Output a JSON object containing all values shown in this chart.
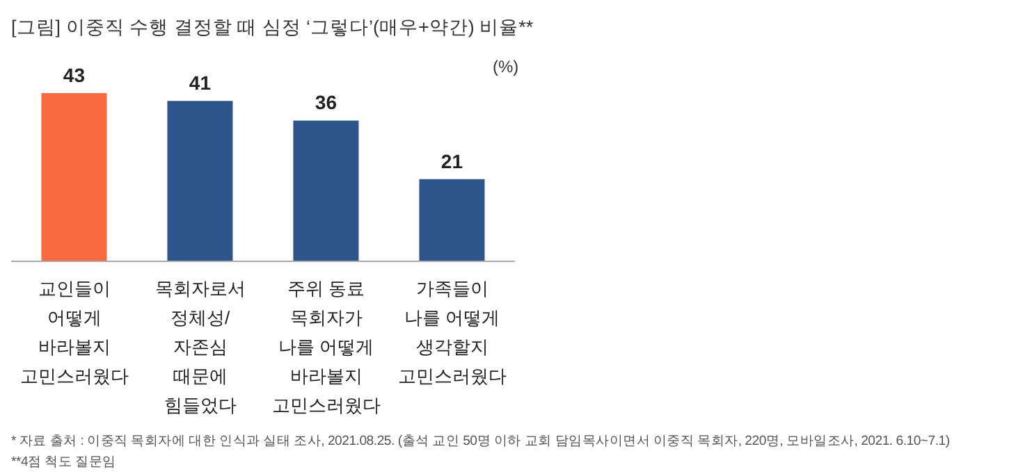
{
  "chart_data": {
    "type": "bar",
    "title": "[그림] 이중직 수행 결정할 때 심정 ‘그렇다’(매우+약간) 비율**",
    "ylabel": "(%)",
    "categories": [
      "교인들이\n어떻게\n바라볼지\n고민스러웠다",
      "목회자로서\n정체성/\n자존심\n때문에\n힘들었다",
      "주위 동료\n목회자가\n나를 어떻게\n바라볼지\n고민스러웠다",
      "가족들이\n나를 어떻게\n생각할지\n고민스러웠다"
    ],
    "values": [
      43,
      41,
      36,
      21
    ],
    "colors": [
      "#fb6a3e",
      "#2e548c",
      "#2e548c",
      "#2e548c"
    ],
    "data_labels": true,
    "annotations": [
      "* 자료 출처 : 이중직 목회자에 대한 인식과 실태 조사, 2021.08.25. (출석 교인 50명 이하 교회 담임목사이면서 이중직 목회자, 220명, 모바일조사, 2021. 6.10~7.1)",
      "**4점 척도 질문임"
    ]
  }
}
